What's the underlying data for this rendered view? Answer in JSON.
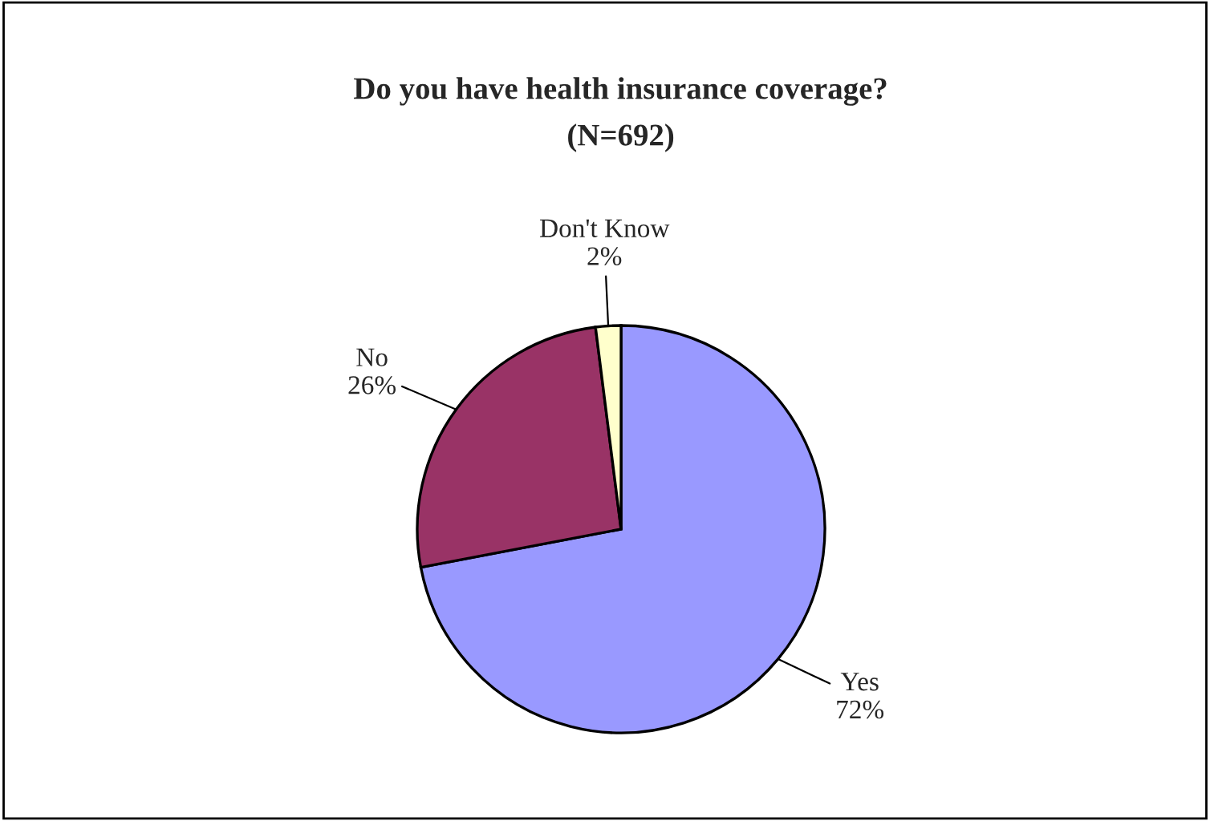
{
  "chart_data": {
    "type": "pie",
    "title": "Do you have health insurance coverage?",
    "subtitle": "(N=692)",
    "categories": [
      "Yes",
      "No",
      "Don't Know"
    ],
    "values": [
      72,
      26,
      2
    ],
    "value_labels": [
      "72%",
      "26%",
      "2%"
    ],
    "colors": [
      "#9999ff",
      "#993366",
      "#ffffcc"
    ],
    "legend": false
  }
}
